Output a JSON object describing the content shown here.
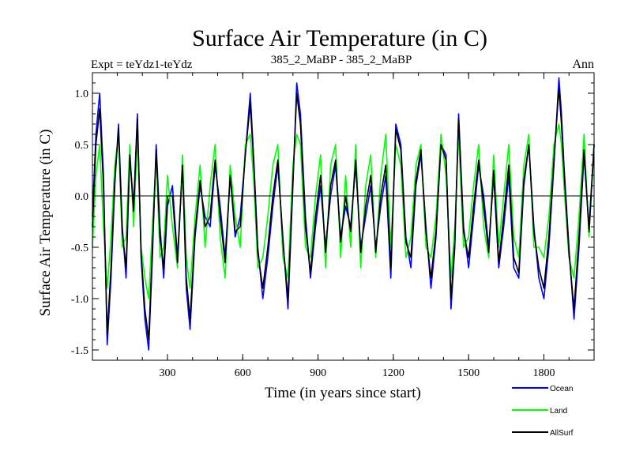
{
  "chart_data": {
    "type": "line",
    "title": "Surface Air Temperature (in C)",
    "header_left": "Expt = teYdz1-teYdz",
    "header_center": "385_2_MaBP - 385_2_MaBP",
    "header_right": "Ann",
    "xlabel": "Time (in years since start)",
    "ylabel": "Surface Air Temperature (in C)",
    "xlim": [
      1,
      2000
    ],
    "ylim": [
      -1.6,
      1.2
    ],
    "xticks": [
      300,
      600,
      900,
      1200,
      1500,
      1800
    ],
    "yticks": [
      -1.5,
      -1.0,
      -0.5,
      0.0,
      0.5,
      1.0
    ],
    "ytick_labels": [
      "-1.5",
      "-1.0",
      "-0.5",
      "0.0",
      "0.5",
      "1.0"
    ],
    "zero_line": true,
    "legend_position": "bottom-right",
    "series": [
      {
        "name": "Ocean",
        "color": "#0000ff",
        "x": [
          1,
          15,
          30,
          45,
          60,
          75,
          90,
          105,
          120,
          135,
          150,
          165,
          180,
          195,
          210,
          225,
          240,
          255,
          270,
          285,
          300,
          320,
          340,
          360,
          375,
          390,
          410,
          430,
          450,
          470,
          490,
          510,
          530,
          550,
          570,
          590,
          610,
          630,
          645,
          660,
          680,
          700,
          720,
          740,
          760,
          780,
          800,
          815,
          830,
          850,
          870,
          890,
          910,
          930,
          950,
          970,
          990,
          1010,
          1030,
          1050,
          1070,
          1090,
          1110,
          1130,
          1150,
          1170,
          1190,
          1210,
          1230,
          1250,
          1270,
          1290,
          1310,
          1330,
          1350,
          1370,
          1390,
          1410,
          1430,
          1445,
          1460,
          1480,
          1500,
          1520,
          1540,
          1560,
          1580,
          1600,
          1620,
          1640,
          1660,
          1680,
          1700,
          1720,
          1740,
          1760,
          1780,
          1800,
          1820,
          1840,
          1860,
          1870,
          1880,
          1900,
          1920,
          1940,
          1960,
          1980,
          2000
        ],
        "values": [
          -0.2,
          0.6,
          1.0,
          0.2,
          -1.45,
          -0.8,
          0.1,
          0.7,
          -0.3,
          -0.8,
          0.4,
          -0.1,
          0.8,
          -0.6,
          -1.2,
          -1.5,
          -0.6,
          0.5,
          -0.3,
          -0.8,
          -0.1,
          0.1,
          -0.6,
          0.3,
          -0.9,
          -1.3,
          -0.4,
          0.1,
          -0.2,
          -0.3,
          0.3,
          -0.1,
          -0.6,
          0.2,
          -0.4,
          -0.2,
          0.4,
          1.0,
          0.3,
          -0.5,
          -1.0,
          -0.6,
          -0.1,
          0.3,
          -0.4,
          -1.1,
          0.1,
          1.1,
          0.8,
          -0.2,
          -0.8,
          -0.3,
          0.1,
          -0.5,
          0.0,
          0.3,
          -0.4,
          -0.1,
          -0.3,
          0.3,
          -0.5,
          -0.2,
          0.1,
          -0.5,
          -0.1,
          0.2,
          -0.8,
          0.7,
          0.5,
          -0.4,
          -0.7,
          0.1,
          0.4,
          -0.3,
          -0.9,
          -0.4,
          0.5,
          0.4,
          -1.1,
          -0.5,
          0.8,
          -0.3,
          -0.7,
          -0.2,
          0.3,
          0.0,
          -0.5,
          0.2,
          -0.7,
          -0.3,
          0.2,
          -0.7,
          -0.8,
          0.1,
          0.5,
          -0.3,
          -0.8,
          -1.0,
          -0.5,
          0.3,
          1.15,
          0.8,
          0.3,
          -0.5,
          -1.2,
          -0.5,
          0.4,
          -0.3,
          0.5
        ]
      },
      {
        "name": "Land",
        "color": "#00ff00",
        "x": [
          1,
          15,
          30,
          45,
          60,
          75,
          90,
          105,
          120,
          135,
          150,
          165,
          180,
          195,
          210,
          225,
          240,
          255,
          270,
          285,
          300,
          320,
          340,
          360,
          375,
          390,
          410,
          430,
          450,
          470,
          490,
          510,
          530,
          550,
          570,
          590,
          610,
          630,
          645,
          660,
          680,
          700,
          720,
          740,
          760,
          780,
          800,
          815,
          830,
          850,
          870,
          890,
          910,
          930,
          950,
          970,
          990,
          1010,
          1030,
          1050,
          1070,
          1090,
          1110,
          1130,
          1150,
          1170,
          1190,
          1210,
          1230,
          1250,
          1270,
          1290,
          1310,
          1330,
          1350,
          1370,
          1390,
          1410,
          1430,
          1445,
          1460,
          1480,
          1500,
          1520,
          1540,
          1560,
          1580,
          1600,
          1620,
          1640,
          1660,
          1680,
          1700,
          1720,
          1740,
          1760,
          1780,
          1800,
          1820,
          1840,
          1860,
          1870,
          1880,
          1900,
          1920,
          1940,
          1960,
          1980,
          2000
        ],
        "values": [
          -0.5,
          0.2,
          0.5,
          -0.3,
          -0.9,
          -0.4,
          0.3,
          0.6,
          -0.5,
          -0.4,
          0.5,
          -0.3,
          0.6,
          -0.5,
          -0.8,
          -1.0,
          -0.3,
          0.4,
          -0.6,
          -0.5,
          0.2,
          -0.3,
          -0.7,
          0.4,
          -0.6,
          -0.9,
          -0.2,
          0.3,
          -0.5,
          0.1,
          0.5,
          -0.4,
          -0.8,
          0.3,
          -0.2,
          -0.5,
          0.5,
          0.6,
          0.1,
          -0.7,
          -0.6,
          -0.2,
          0.3,
          0.5,
          -0.6,
          -0.8,
          0.3,
          0.6,
          0.5,
          -0.5,
          -0.6,
          0.0,
          0.4,
          -0.7,
          0.3,
          0.5,
          -0.6,
          0.2,
          -0.5,
          0.5,
          -0.7,
          0.1,
          0.4,
          -0.6,
          0.2,
          0.6,
          -0.5,
          0.5,
          0.3,
          -0.6,
          -0.4,
          0.3,
          0.5,
          -0.5,
          -0.6,
          -0.2,
          0.6,
          0.2,
          -0.8,
          -0.3,
          0.6,
          -0.5,
          -0.4,
          0.1,
          0.5,
          -0.3,
          -0.6,
          0.4,
          -0.5,
          0.0,
          0.5,
          -0.4,
          -0.6,
          0.3,
          0.6,
          -0.5,
          -0.5,
          -0.6,
          -0.2,
          0.5,
          0.7,
          0.5,
          0.1,
          -0.6,
          -0.8,
          -0.2,
          0.6,
          -0.4,
          0.5
        ]
      },
      {
        "name": "AllSurf",
        "color": "#000000",
        "x": [
          1,
          15,
          30,
          45,
          60,
          75,
          90,
          105,
          120,
          135,
          150,
          165,
          180,
          195,
          210,
          225,
          240,
          255,
          270,
          285,
          300,
          320,
          340,
          360,
          375,
          390,
          410,
          430,
          450,
          470,
          490,
          510,
          530,
          550,
          570,
          590,
          610,
          630,
          645,
          660,
          680,
          700,
          720,
          740,
          760,
          780,
          800,
          815,
          830,
          850,
          870,
          890,
          910,
          930,
          950,
          970,
          990,
          1010,
          1030,
          1050,
          1070,
          1090,
          1110,
          1130,
          1150,
          1170,
          1190,
          1210,
          1230,
          1250,
          1270,
          1290,
          1310,
          1330,
          1350,
          1370,
          1390,
          1410,
          1430,
          1445,
          1460,
          1480,
          1500,
          1520,
          1540,
          1560,
          1580,
          1600,
          1620,
          1640,
          1660,
          1680,
          1700,
          1720,
          1740,
          1760,
          1780,
          1800,
          1820,
          1840,
          1860,
          1870,
          1880,
          1900,
          1920,
          1940,
          1960,
          1980,
          2000
        ],
        "values": [
          -0.3,
          0.5,
          0.85,
          0.1,
          -1.35,
          -0.7,
          0.15,
          0.65,
          -0.35,
          -0.7,
          0.4,
          -0.15,
          0.75,
          -0.55,
          -1.1,
          -1.4,
          -0.5,
          0.45,
          -0.4,
          -0.7,
          0.0,
          0.0,
          -0.65,
          0.3,
          -0.8,
          -1.2,
          -0.35,
          0.15,
          -0.3,
          -0.2,
          0.35,
          -0.2,
          -0.65,
          0.2,
          -0.35,
          -0.3,
          0.4,
          0.9,
          0.25,
          -0.55,
          -0.9,
          -0.5,
          0.0,
          0.35,
          -0.45,
          -1.0,
          0.15,
          1.0,
          0.7,
          -0.3,
          -0.75,
          -0.2,
          0.2,
          -0.55,
          0.1,
          0.35,
          -0.45,
          0.0,
          -0.35,
          0.35,
          -0.55,
          -0.1,
          0.2,
          -0.55,
          0.0,
          0.3,
          -0.7,
          0.65,
          0.45,
          -0.45,
          -0.6,
          0.15,
          0.45,
          -0.35,
          -0.8,
          -0.35,
          0.5,
          0.35,
          -1.0,
          -0.45,
          0.75,
          -0.35,
          -0.6,
          -0.1,
          0.35,
          -0.1,
          -0.55,
          0.25,
          -0.65,
          -0.2,
          0.3,
          -0.6,
          -0.75,
          0.15,
          0.5,
          -0.35,
          -0.7,
          -0.9,
          -0.4,
          0.35,
          1.05,
          0.7,
          0.25,
          -0.55,
          -1.1,
          -0.4,
          0.45,
          -0.35,
          0.5
        ]
      }
    ]
  }
}
